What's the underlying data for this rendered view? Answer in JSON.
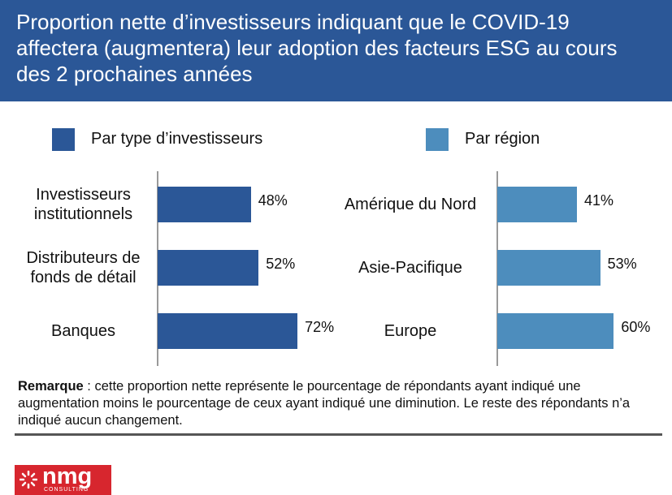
{
  "title": "Proportion nette d’investisseurs indiquant que le COVID-19 affectera (augmentera) leur adoption des facteurs ESG au cours des 2 prochaines années",
  "chart_data": [
    {
      "type": "bar",
      "orientation": "horizontal",
      "categories": [
        "Investisseurs institutionnels",
        "Distributeurs de fonds de détail",
        "Banques"
      ],
      "series": [
        {
          "name": "Par type d’investisseurs",
          "color": "#2b5797",
          "values": [
            48,
            52,
            72
          ],
          "value_labels": [
            "48%",
            "52%",
            "72%"
          ]
        }
      ]
    },
    {
      "type": "bar",
      "orientation": "horizontal",
      "categories": [
        "Amérique du Nord",
        "Asie-Pacifique",
        "Europe"
      ],
      "series": [
        {
          "name": "Par région",
          "color": "#4d8dbd",
          "values": [
            41,
            53,
            60
          ],
          "value_labels": [
            "41%",
            "53%",
            "60%"
          ]
        }
      ]
    }
  ],
  "note": {
    "label": "Remarque",
    "text": " : cette proportion nette représente le pourcentage de répondants ayant indiqué une augmentation moins le pourcentage de ceux ayant indiqué une diminution. Le reste des répondants n’a indiqué aucun changement."
  },
  "logo": {
    "name": "nmg",
    "sub": "CONSULTING"
  }
}
